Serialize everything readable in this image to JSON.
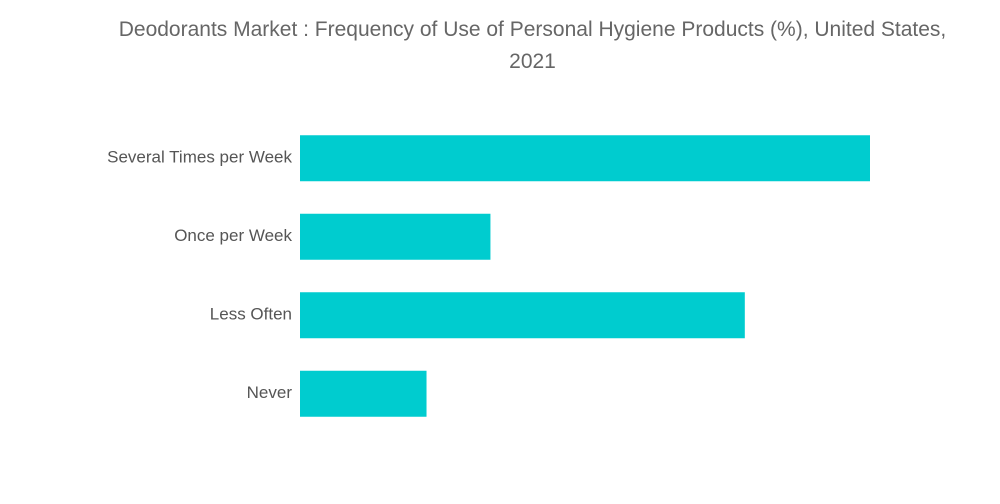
{
  "chart_data": {
    "type": "bar",
    "orientation": "horizontal",
    "title": "Deodorants Market : Frequency of Use of Personal Hygiene Products (%), United States, 2021",
    "categories": [
      "Several Times per Week",
      "Once per Week",
      "Less Often",
      "Never"
    ],
    "values": [
      42.8,
      14.3,
      33.4,
      9.5
    ],
    "color": "#00cccf"
  }
}
